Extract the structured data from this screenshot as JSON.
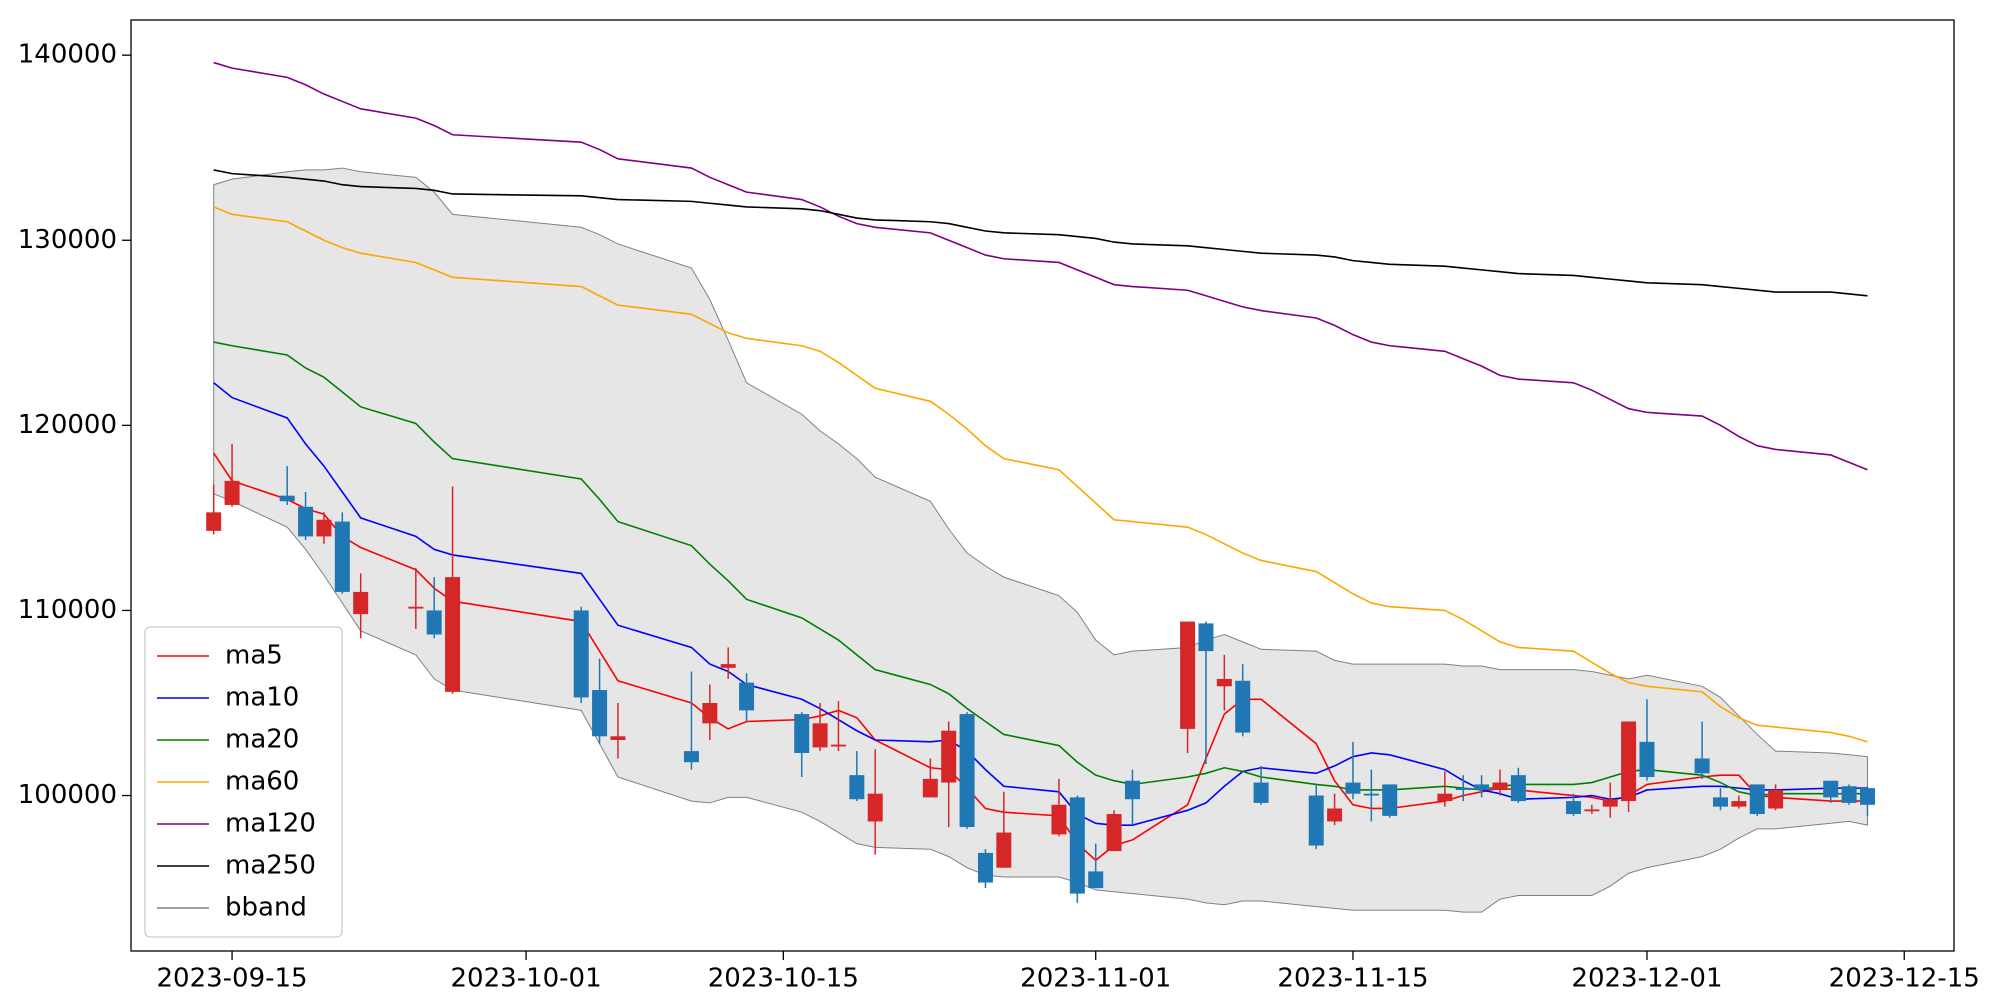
{
  "chart_data": {
    "type": "candlestick",
    "x": [
      "2023-09-14",
      "2023-09-15",
      "2023-09-18",
      "2023-09-19",
      "2023-09-20",
      "2023-09-21",
      "2023-09-22",
      "2023-09-25",
      "2023-09-26",
      "2023-09-27",
      "2023-10-04",
      "2023-10-05",
      "2023-10-06",
      "2023-10-10",
      "2023-10-11",
      "2023-10-12",
      "2023-10-13",
      "2023-10-16",
      "2023-10-17",
      "2023-10-18",
      "2023-10-19",
      "2023-10-20",
      "2023-10-23",
      "2023-10-24",
      "2023-10-25",
      "2023-10-26",
      "2023-10-27",
      "2023-10-30",
      "2023-10-31",
      "2023-11-01",
      "2023-11-02",
      "2023-11-03",
      "2023-11-06",
      "2023-11-07",
      "2023-11-08",
      "2023-11-09",
      "2023-11-10",
      "2023-11-13",
      "2023-11-14",
      "2023-11-15",
      "2023-11-16",
      "2023-11-17",
      "2023-11-20",
      "2023-11-21",
      "2023-11-22",
      "2023-11-23",
      "2023-11-24",
      "2023-11-27",
      "2023-11-28",
      "2023-11-29",
      "2023-11-30",
      "2023-12-01",
      "2023-12-04",
      "2023-12-05",
      "2023-12-06",
      "2023-12-07",
      "2023-12-08",
      "2023-12-11",
      "2023-12-12",
      "2023-12-13"
    ],
    "open": [
      114300,
      115700,
      116200,
      115600,
      114000,
      114800,
      109800,
      110100,
      110000,
      105600,
      110000,
      105700,
      103000,
      102400,
      103900,
      106900,
      106100,
      104400,
      102600,
      102650,
      101100,
      98600,
      99900,
      100700,
      104400,
      96900,
      96100,
      97900,
      99900,
      95900,
      97000,
      100800,
      103600,
      109300,
      105900,
      106200,
      100700,
      100000,
      98600,
      100700,
      100100,
      100600,
      99700,
      100400,
      100600,
      100300,
      101100,
      99700,
      99150,
      99400,
      99700,
      102900,
      102000,
      99900,
      99400,
      100600,
      99300,
      100800,
      100500,
      100400
    ],
    "high": [
      116800,
      119000,
      117800,
      116400,
      115300,
      115300,
      112000,
      112300,
      111800,
      116700,
      110200,
      107400,
      105000,
      106700,
      106000,
      108000,
      106600,
      104500,
      105000,
      105100,
      102400,
      102500,
      102000,
      104000,
      104500,
      97100,
      100200,
      100900,
      100000,
      97400,
      99200,
      101400,
      109400,
      109400,
      107600,
      107100,
      101600,
      100600,
      100100,
      102900,
      101400,
      100600,
      101300,
      101100,
      101100,
      101400,
      101500,
      100100,
      99500,
      100700,
      104000,
      105200,
      104000,
      100400,
      100000,
      100600,
      100600,
      100800,
      100600,
      100500
    ],
    "low": [
      114100,
      115600,
      115700,
      113800,
      113600,
      110900,
      108500,
      109000,
      108500,
      105500,
      105000,
      102800,
      102000,
      101400,
      103000,
      106300,
      104000,
      101000,
      102400,
      102400,
      99700,
      96800,
      99900,
      98300,
      98200,
      95000,
      96100,
      97800,
      94200,
      95000,
      97000,
      98400,
      102300,
      101700,
      104600,
      103200,
      99500,
      97100,
      98400,
      99800,
      98600,
      98800,
      99400,
      99700,
      99900,
      100000,
      99600,
      98900,
      99000,
      98800,
      99100,
      100800,
      100900,
      99200,
      99300,
      98900,
      99200,
      99600,
      99500,
      98900
    ],
    "close": [
      115300,
      117000,
      115900,
      114000,
      114900,
      111000,
      111000,
      110200,
      108700,
      111800,
      105300,
      103200,
      103200,
      101800,
      105000,
      107100,
      104600,
      102300,
      103900,
      102750,
      99800,
      100100,
      100900,
      103500,
      98300,
      95300,
      98000,
      99500,
      94700,
      95000,
      99000,
      99800,
      109400,
      107800,
      106300,
      103400,
      99600,
      97300,
      99300,
      100100,
      100000,
      98900,
      100100,
      100300,
      100300,
      100700,
      99700,
      99000,
      99250,
      99800,
      104000,
      101000,
      101200,
      99400,
      99700,
      99000,
      100300,
      99900,
      99600,
      99500
    ],
    "up_color": "#d62728",
    "down_color": "#1f77b4",
    "series": [
      {
        "name": "ma5",
        "color": "#ff0000",
        "values": [
          118500,
          117000,
          116000,
          115500,
          115200,
          114000,
          113400,
          112200,
          111200,
          110500,
          109400,
          107800,
          106200,
          105000,
          104200,
          103600,
          104000,
          104100,
          104300,
          104600,
          104200,
          103000,
          101500,
          101400,
          100400,
          99300,
          99100,
          98900,
          97400,
          96500,
          97300,
          97600,
          99500,
          102000,
          104400,
          105200,
          105200,
          102800,
          100800,
          99500,
          99300,
          99300,
          99700,
          100000,
          100200,
          100400,
          100300,
          100000,
          99900,
          99700,
          100000,
          100600,
          101000,
          101100,
          101100,
          100000,
          99900,
          99700,
          99700,
          99700
        ]
      },
      {
        "name": "ma10",
        "color": "#0000ff",
        "values": [
          122300,
          121500,
          120400,
          119000,
          117800,
          116400,
          115000,
          114000,
          113300,
          113000,
          112000,
          110600,
          109200,
          108000,
          107100,
          106700,
          106000,
          105200,
          104700,
          104100,
          103500,
          103000,
          102900,
          103000,
          102400,
          101400,
          100500,
          100200,
          99000,
          98500,
          98400,
          98400,
          99200,
          99600,
          100500,
          101300,
          101500,
          101200,
          101600,
          102100,
          102300,
          102200,
          101400,
          100800,
          100300,
          100100,
          99800,
          99900,
          100000,
          99800,
          99900,
          100300,
          100500,
          100500,
          100400,
          100300,
          100300,
          100400,
          100400,
          100400
        ]
      },
      {
        "name": "ma20",
        "color": "#008000",
        "values": [
          124500,
          124300,
          123800,
          123100,
          122600,
          121800,
          121000,
          120100,
          119100,
          118200,
          117100,
          116000,
          114800,
          113500,
          112500,
          111600,
          110600,
          109600,
          109000,
          108400,
          107600,
          106800,
          106000,
          105500,
          104700,
          104000,
          103300,
          102700,
          101800,
          101100,
          100800,
          100600,
          101000,
          101200,
          101500,
          101300,
          101000,
          100600,
          100500,
          100300,
          100300,
          100300,
          100500,
          100400,
          100300,
          100500,
          100600,
          100600,
          100700,
          101000,
          101300,
          101400,
          101100,
          100700,
          100200,
          100000,
          100100,
          100100,
          100100,
          100100
        ]
      },
      {
        "name": "ma60",
        "color": "#ffa500",
        "values": [
          131800,
          131400,
          131000,
          130500,
          130000,
          129600,
          129300,
          128800,
          128400,
          128000,
          127500,
          127000,
          126500,
          126000,
          125500,
          125000,
          124700,
          124300,
          124000,
          123400,
          122700,
          122000,
          121300,
          120600,
          119800,
          118900,
          118200,
          117600,
          116700,
          115800,
          114900,
          114800,
          114500,
          114100,
          113600,
          113100,
          112700,
          112100,
          111500,
          110900,
          110400,
          110200,
          110000,
          109500,
          108900,
          108300,
          108000,
          107800,
          107200,
          106600,
          106100,
          105900,
          105600,
          104800,
          104200,
          103800,
          103700,
          103400,
          103200,
          102900
        ]
      },
      {
        "name": "ma120",
        "color": "#800080",
        "values": [
          139600,
          139300,
          138800,
          138400,
          137900,
          137500,
          137100,
          136600,
          136200,
          135700,
          135300,
          134900,
          134400,
          133900,
          133400,
          133000,
          132600,
          132200,
          131800,
          131300,
          130900,
          130700,
          130400,
          130000,
          129600,
          129200,
          129000,
          128800,
          128400,
          128000,
          127600,
          127500,
          127300,
          127000,
          126700,
          126400,
          126200,
          125800,
          125400,
          124900,
          124500,
          124300,
          124000,
          123600,
          123200,
          122700,
          122500,
          122300,
          121900,
          121400,
          120900,
          120700,
          120500,
          120000,
          119400,
          118900,
          118700,
          118400,
          118000,
          117600
        ]
      },
      {
        "name": "ma250",
        "color": "#000000",
        "values": [
          133800,
          133600,
          133400,
          133300,
          133200,
          133000,
          132900,
          132800,
          132700,
          132500,
          132400,
          132300,
          132200,
          132100,
          132000,
          131900,
          131800,
          131700,
          131600,
          131400,
          131200,
          131100,
          131000,
          130900,
          130700,
          130500,
          130400,
          130300,
          130200,
          130100,
          129900,
          129800,
          129700,
          129600,
          129500,
          129400,
          129300,
          129200,
          129100,
          128900,
          128800,
          128700,
          128600,
          128500,
          128400,
          128300,
          128200,
          128100,
          128000,
          127900,
          127800,
          127700,
          127600,
          127500,
          127400,
          127300,
          127200,
          127200,
          127100,
          127000
        ]
      }
    ],
    "bband": {
      "name": "bband",
      "color": "#808080",
      "fill": "#e6e6e6",
      "upper": [
        133000,
        133300,
        133700,
        133800,
        133800,
        133900,
        133700,
        133400,
        132600,
        131400,
        130700,
        130300,
        129800,
        128500,
        126800,
        124600,
        122300,
        120600,
        119700,
        119000,
        118200,
        117200,
        115900,
        114400,
        113100,
        112400,
        111800,
        110800,
        109900,
        108400,
        107600,
        107800,
        108000,
        108400,
        108700,
        108300,
        107900,
        107800,
        107300,
        107100,
        107100,
        107100,
        107100,
        107000,
        107000,
        106800,
        106800,
        106800,
        106700,
        106500,
        106300,
        106500,
        105900,
        105300,
        104300,
        103300,
        102400,
        102300,
        102200,
        102100
      ],
      "lower": [
        116300,
        115900,
        114500,
        113300,
        111900,
        110400,
        108900,
        107600,
        106300,
        105700,
        104600,
        102800,
        101000,
        99700,
        99600,
        99900,
        99900,
        99100,
        98600,
        98000,
        97400,
        97200,
        97100,
        96700,
        96100,
        95700,
        95600,
        95600,
        95300,
        94900,
        94800,
        94700,
        94400,
        94200,
        94100,
        94300,
        94300,
        94000,
        93900,
        93800,
        93800,
        93800,
        93800,
        93700,
        93700,
        94400,
        94600,
        94600,
        94600,
        95100,
        95800,
        96100,
        96700,
        97100,
        97700,
        98200,
        98200,
        98500,
        98600,
        98400
      ]
    },
    "xlim": [
      "2023-09-09T12:00",
      "2023-12-17T17:00"
    ],
    "xticks": [
      "2023-09-15",
      "2023-10-01",
      "2023-10-15",
      "2023-11-01",
      "2023-11-15",
      "2023-12-01",
      "2023-12-15"
    ],
    "ylim": [
      91600,
      141900
    ],
    "yticks": [
      100000,
      110000,
      120000,
      130000,
      140000
    ],
    "grid": false,
    "legend": "lower left"
  }
}
